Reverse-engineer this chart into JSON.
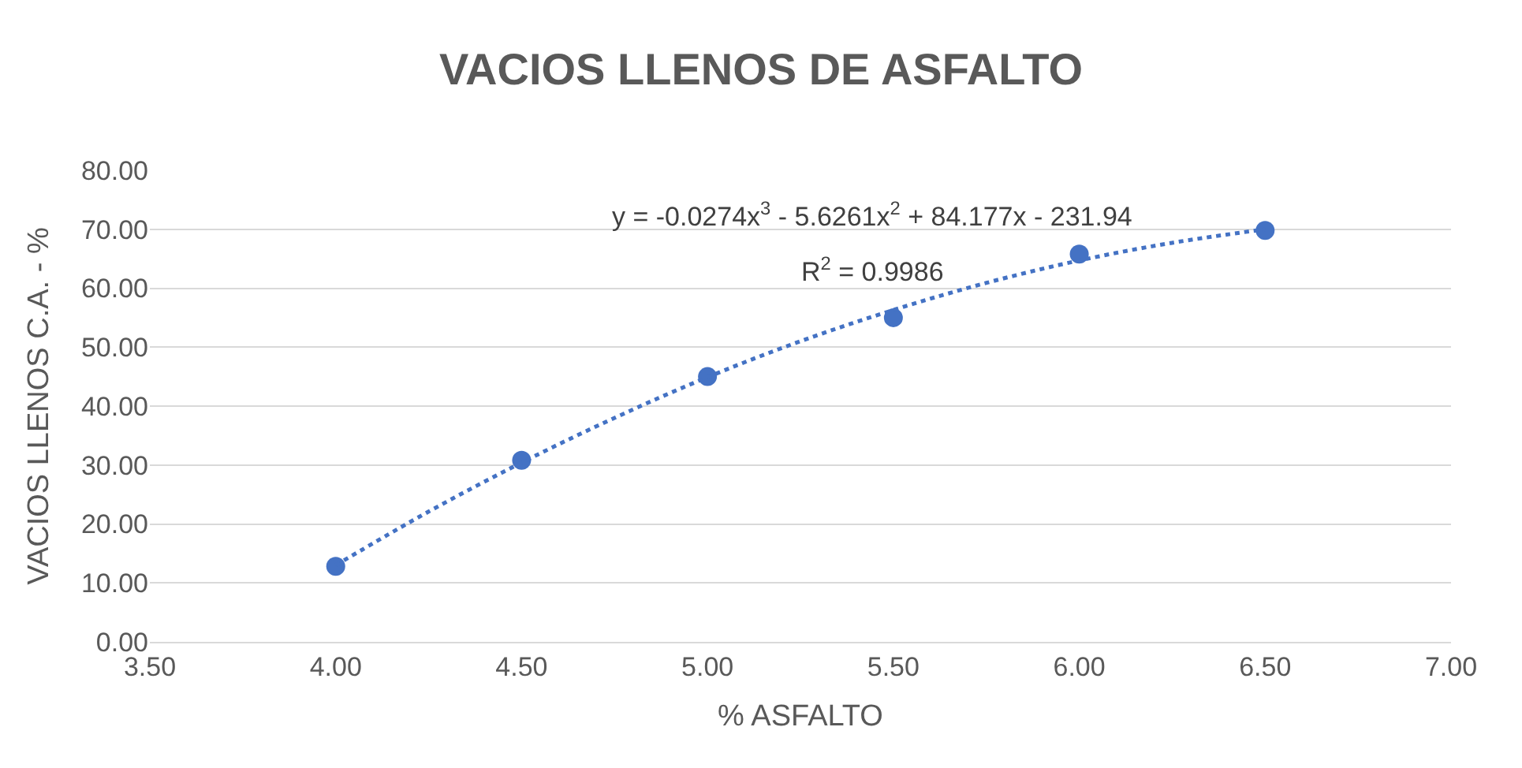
{
  "chart_data": {
    "type": "scatter",
    "title": "VACIOS LLENOS DE ASFALTO",
    "xlabel": "% ASFALTO",
    "ylabel": "VACIOS LLENOS C.A. - %",
    "x": [
      4.0,
      4.5,
      5.0,
      5.5,
      6.0,
      6.5
    ],
    "series": [
      {
        "color": "#4472c4",
        "marker": "circle",
        "values": [
          12.8,
          30.8,
          45.0,
          55.0,
          65.8,
          69.8
        ]
      },
      {
        "type": "line",
        "color": "#4472c4",
        "line_style": "dotted",
        "marker": "none",
        "x": [
          4.0,
          4.25,
          4.5,
          4.75,
          5.0,
          5.25,
          5.5,
          5.75,
          6.0,
          6.25,
          6.5
        ],
        "values": [
          13.0,
          22.1,
          30.4,
          38.0,
          44.9,
          51.0,
          56.3,
          60.9,
          64.7,
          67.7,
          70.0
        ]
      }
    ],
    "annotations": [
      "y = -0.0274x$^{3}$ - 5.6261x$^{2}$ + 84.177x - 231.94",
      "R$^{2}$ = 0.9986"
    ],
    "xlim": [
      3.5,
      7.0
    ],
    "xticks": [
      {
        "value": 3.5,
        "label": "3.50"
      },
      {
        "value": 4.0,
        "label": "4.00"
      },
      {
        "value": 4.5,
        "label": "4.50"
      },
      {
        "value": 5.0,
        "label": "5.00"
      },
      {
        "value": 5.5,
        "label": "5.50"
      },
      {
        "value": 6.0,
        "label": "6.00"
      },
      {
        "value": 6.5,
        "label": "6.50"
      },
      {
        "value": 7.0,
        "label": "7.00"
      }
    ],
    "ylim": [
      0,
      80
    ],
    "yticks": [
      {
        "value": 0,
        "label": "0.00"
      },
      {
        "value": 10,
        "label": "10.00"
      },
      {
        "value": 20,
        "label": "20.00"
      },
      {
        "value": 30,
        "label": "30.00"
      },
      {
        "value": 40,
        "label": "40.00"
      },
      {
        "value": 50,
        "label": "50.00"
      },
      {
        "value": 60,
        "label": "60.00"
      },
      {
        "value": 70,
        "label": "70.00"
      },
      {
        "value": 80,
        "label": "80.00"
      }
    ],
    "grid": "y"
  }
}
